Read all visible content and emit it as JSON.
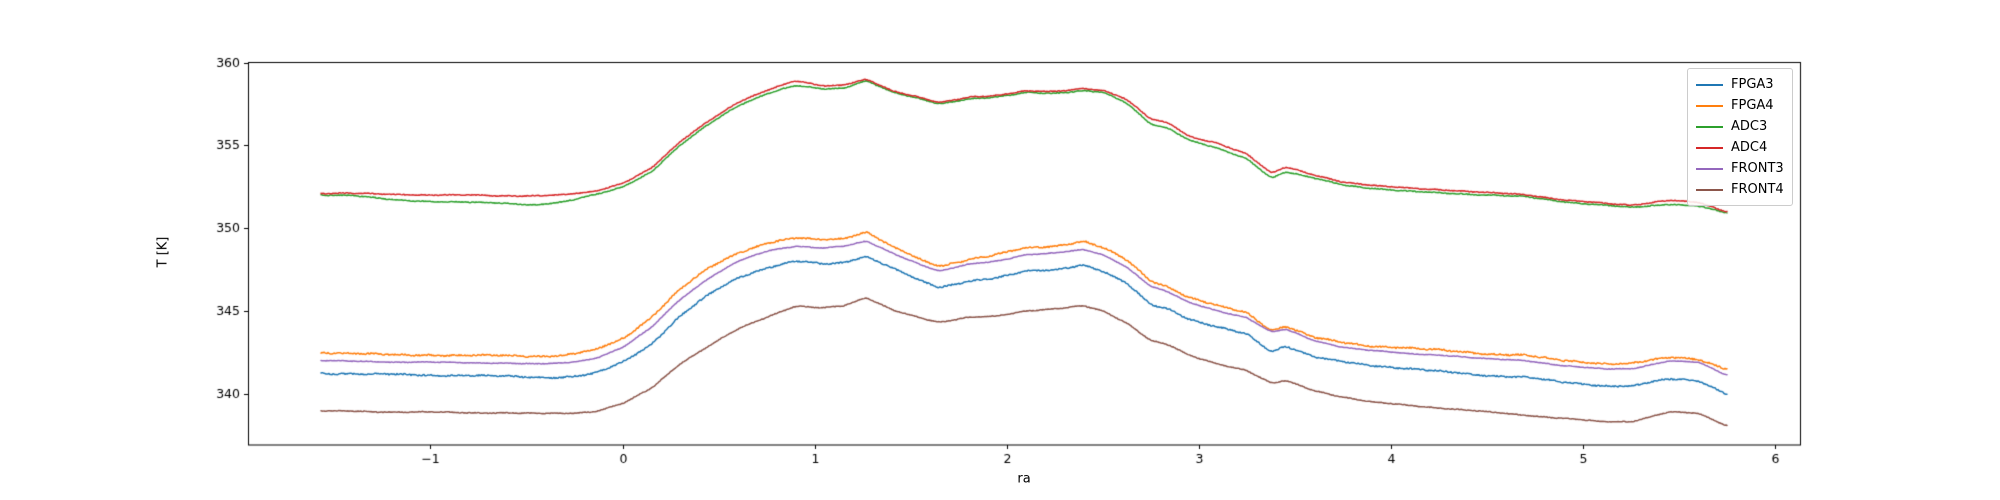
{
  "chart_data": {
    "type": "line",
    "title": "",
    "xlabel": "ra",
    "ylabel": "T [K]",
    "xlim": [
      -1.95,
      6.13
    ],
    "ylim": [
      336.9,
      360
    ],
    "xticks": [
      -1,
      0,
      1,
      2,
      3,
      4,
      5,
      6
    ],
    "yticks": [
      340,
      345,
      350,
      355,
      360
    ],
    "grid": false,
    "legend_position": "upper right",
    "x": [
      -1.57,
      -1.4,
      -1.2,
      -1.0,
      -0.8,
      -0.6,
      -0.45,
      -0.3,
      -0.15,
      0.0,
      0.15,
      0.3,
      0.45,
      0.6,
      0.75,
      0.9,
      1.05,
      1.15,
      1.27,
      1.4,
      1.55,
      1.65,
      1.8,
      1.95,
      2.1,
      2.25,
      2.4,
      2.5,
      2.62,
      2.75,
      2.85,
      2.95,
      3.1,
      3.25,
      3.38,
      3.45,
      3.6,
      3.75,
      3.9,
      4.1,
      4.3,
      4.5,
      4.7,
      4.9,
      5.1,
      5.25,
      5.45,
      5.6,
      5.75
    ],
    "series": [
      {
        "name": "FPGA3",
        "color": "#1f77b4",
        "values": [
          341.2,
          341.2,
          341.15,
          341.1,
          341.1,
          341.05,
          341.0,
          341.0,
          341.2,
          341.9,
          343.0,
          344.7,
          346.0,
          347.0,
          347.6,
          348.0,
          347.8,
          347.9,
          348.3,
          347.6,
          346.8,
          346.4,
          346.8,
          347.0,
          347.4,
          347.5,
          347.8,
          347.4,
          346.7,
          345.4,
          345.1,
          344.5,
          344.0,
          343.6,
          342.5,
          342.9,
          342.2,
          341.9,
          341.7,
          341.5,
          341.3,
          341.1,
          341.0,
          340.7,
          340.5,
          340.45,
          340.9,
          340.8,
          339.95
        ]
      },
      {
        "name": "FPGA4",
        "color": "#ff7f0e",
        "values": [
          342.5,
          342.45,
          342.35,
          342.35,
          342.3,
          342.3,
          342.25,
          342.3,
          342.6,
          343.3,
          344.6,
          346.3,
          347.6,
          348.5,
          349.1,
          349.4,
          349.3,
          349.4,
          349.8,
          348.9,
          348.1,
          347.7,
          348.1,
          348.4,
          348.8,
          348.9,
          349.2,
          348.8,
          348.1,
          346.8,
          346.4,
          345.8,
          345.3,
          344.9,
          343.8,
          344.1,
          343.4,
          343.1,
          342.9,
          342.75,
          342.6,
          342.4,
          342.3,
          342.0,
          341.8,
          341.8,
          342.2,
          342.1,
          341.45
        ]
      },
      {
        "name": "ADC3",
        "color": "#2ca02c",
        "values": [
          352.0,
          351.95,
          351.7,
          351.6,
          351.55,
          351.5,
          351.4,
          351.6,
          352.0,
          352.5,
          353.4,
          355.0,
          356.3,
          357.4,
          358.1,
          358.6,
          358.4,
          358.45,
          358.9,
          358.2,
          357.8,
          357.5,
          357.8,
          357.9,
          358.2,
          358.15,
          358.3,
          358.2,
          357.6,
          356.3,
          356.0,
          355.3,
          354.8,
          354.2,
          353.0,
          353.4,
          353.0,
          352.6,
          352.4,
          352.2,
          352.1,
          352.0,
          351.9,
          351.6,
          351.4,
          351.25,
          351.45,
          351.35,
          350.9
        ]
      },
      {
        "name": "ADC4",
        "color": "#d62728",
        "values": [
          352.1,
          352.1,
          352.05,
          352.0,
          352.0,
          351.95,
          351.95,
          352.0,
          352.2,
          352.7,
          353.6,
          355.2,
          356.5,
          357.6,
          358.3,
          358.9,
          358.6,
          358.65,
          359.0,
          358.3,
          357.9,
          357.6,
          357.9,
          358.0,
          358.3,
          358.25,
          358.4,
          358.3,
          357.8,
          356.6,
          356.3,
          355.5,
          355.1,
          354.5,
          353.3,
          353.7,
          353.2,
          352.8,
          352.6,
          352.4,
          352.3,
          352.15,
          352.0,
          351.7,
          351.5,
          351.35,
          351.7,
          351.55,
          350.95
        ]
      },
      {
        "name": "FRONT3",
        "color": "#9467bd",
        "values": [
          342.0,
          341.95,
          341.9,
          341.9,
          341.85,
          341.85,
          341.8,
          341.85,
          342.1,
          342.8,
          344.0,
          345.7,
          347.0,
          348.0,
          348.6,
          348.9,
          348.8,
          348.9,
          349.2,
          348.5,
          347.8,
          347.4,
          347.8,
          348.0,
          348.4,
          348.5,
          348.7,
          348.4,
          347.7,
          346.5,
          346.1,
          345.5,
          345.0,
          344.6,
          343.7,
          343.9,
          343.2,
          342.8,
          342.6,
          342.4,
          342.3,
          342.1,
          342.0,
          341.7,
          341.5,
          341.5,
          342.0,
          341.9,
          341.1
        ]
      },
      {
        "name": "FRONT4",
        "color": "#8c564b",
        "values": [
          338.95,
          338.95,
          338.9,
          338.9,
          338.85,
          338.85,
          338.8,
          338.8,
          338.9,
          339.4,
          340.3,
          341.8,
          342.9,
          343.9,
          344.6,
          345.3,
          345.2,
          345.3,
          345.8,
          345.1,
          344.6,
          344.3,
          344.6,
          344.7,
          345.0,
          345.1,
          345.3,
          345.0,
          344.3,
          343.2,
          342.9,
          342.3,
          341.8,
          341.4,
          340.6,
          340.8,
          340.2,
          339.8,
          339.5,
          339.3,
          339.1,
          338.9,
          338.7,
          338.5,
          338.3,
          338.3,
          338.9,
          338.8,
          338.05
        ]
      }
    ]
  }
}
